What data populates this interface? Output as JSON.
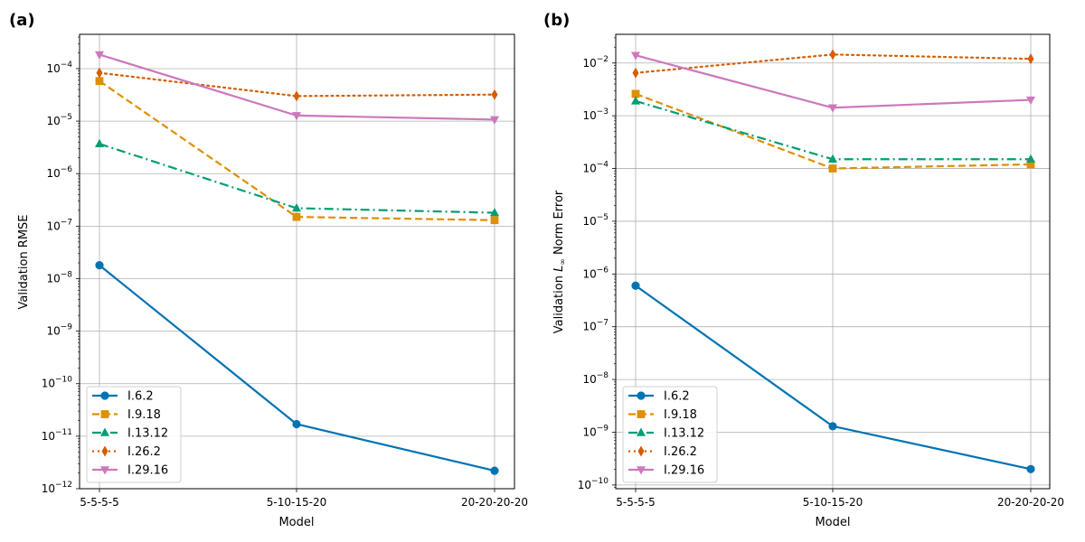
{
  "chart_data": [
    {
      "type": "line",
      "panel_label": "(a)",
      "xlabel": "Model",
      "ylabel": "Validation RMSE",
      "yscale": "log",
      "ylim": [
        1e-12,
        0.00045
      ],
      "grid": true,
      "legend_position": "lower-left",
      "categories": [
        "5-5-5-5",
        "5-10-15-20",
        "20-20-20-20"
      ],
      "y_ticks": [
        {
          "value": 1e-12,
          "base": "10",
          "exp": "−12"
        },
        {
          "value": 1e-11,
          "base": "10",
          "exp": "−11"
        },
        {
          "value": 1e-10,
          "base": "10",
          "exp": "−10"
        },
        {
          "value": 1e-09,
          "base": "10",
          "exp": "−9"
        },
        {
          "value": 1e-08,
          "base": "10",
          "exp": "−8"
        },
        {
          "value": 1e-07,
          "base": "10",
          "exp": "−7"
        },
        {
          "value": 1e-06,
          "base": "10",
          "exp": "−6"
        },
        {
          "value": 1e-05,
          "base": "10",
          "exp": "−5"
        },
        {
          "value": 0.0001,
          "base": "10",
          "exp": "−4"
        }
      ],
      "series": [
        {
          "name": "I.6.2",
          "color": "#0173b2",
          "dash": "solid",
          "marker": "circle",
          "values": [
            1.8e-08,
            1.7e-11,
            2.2e-12
          ]
        },
        {
          "name": "I.9.18",
          "color": "#de8f05",
          "dash": "dashed",
          "marker": "square",
          "values": [
            5.8e-05,
            1.5e-07,
            1.3e-07
          ]
        },
        {
          "name": "I.13.12",
          "color": "#029e73",
          "dash": "dashdot",
          "marker": "triangle-up",
          "values": [
            3.7e-06,
            2.2e-07,
            1.8e-07
          ]
        },
        {
          "name": "I.26.2",
          "color": "#d55e00",
          "dash": "dotted",
          "marker": "diamond",
          "values": [
            8.3e-05,
            3e-05,
            3.2e-05
          ]
        },
        {
          "name": "I.29.16",
          "color": "#cc78bc",
          "dash": "solid",
          "marker": "triangle-down",
          "values": [
            0.000185,
            1.28e-05,
            1.07e-05
          ]
        }
      ]
    },
    {
      "type": "line",
      "panel_label": "(b)",
      "xlabel": "Model",
      "ylabel_prefix": "Validation ",
      "ylabel_math": "L",
      "ylabel_sub": "∞",
      "ylabel_suffix": " Norm Error",
      "yscale": "log",
      "ylim": [
        8.5e-11,
        0.035
      ],
      "grid": true,
      "legend_position": "lower-left",
      "categories": [
        "5-5-5-5",
        "5-10-15-20",
        "20-20-20-20"
      ],
      "y_ticks": [
        {
          "value": 1e-10,
          "base": "10",
          "exp": "−10"
        },
        {
          "value": 1e-09,
          "base": "10",
          "exp": "−9"
        },
        {
          "value": 1e-08,
          "base": "10",
          "exp": "−8"
        },
        {
          "value": 1e-07,
          "base": "10",
          "exp": "−7"
        },
        {
          "value": 1e-06,
          "base": "10",
          "exp": "−6"
        },
        {
          "value": 1e-05,
          "base": "10",
          "exp": "−5"
        },
        {
          "value": 0.0001,
          "base": "10",
          "exp": "−4"
        },
        {
          "value": 0.001,
          "base": "10",
          "exp": "−3"
        },
        {
          "value": 0.01,
          "base": "10",
          "exp": "−2"
        }
      ],
      "series": [
        {
          "name": "I.6.2",
          "color": "#0173b2",
          "dash": "solid",
          "marker": "circle",
          "values": [
            6e-07,
            1.3e-09,
            2e-10
          ]
        },
        {
          "name": "I.9.18",
          "color": "#de8f05",
          "dash": "dashed",
          "marker": "square",
          "values": [
            0.0026,
            0.0001,
            0.00012
          ]
        },
        {
          "name": "I.13.12",
          "color": "#029e73",
          "dash": "dashdot",
          "marker": "triangle-up",
          "values": [
            0.0019,
            0.00015,
            0.00015
          ]
        },
        {
          "name": "I.26.2",
          "color": "#d55e00",
          "dash": "dotted",
          "marker": "diamond",
          "values": [
            0.0065,
            0.0145,
            0.012
          ]
        },
        {
          "name": "I.29.16",
          "color": "#cc78bc",
          "dash": "solid",
          "marker": "triangle-down",
          "values": [
            0.014,
            0.00142,
            0.002
          ]
        }
      ]
    }
  ]
}
